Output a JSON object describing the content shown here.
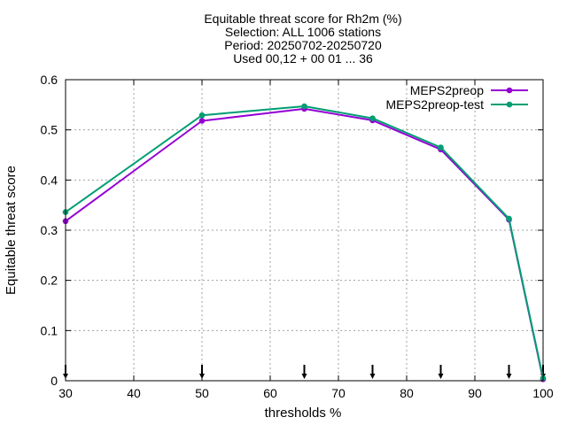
{
  "chart_data": {
    "type": "line",
    "title_lines": [
      "Equitable threat score  for Rh2m (%)",
      "Selection: ALL   1006 stations",
      "Period: 20250702-20250720",
      "Used 00,12 + 00 01 ... 36"
    ],
    "xlabel": "thresholds %",
    "ylabel": "Equitable threat score",
    "xlim": [
      30,
      100
    ],
    "ylim": [
      0,
      0.6
    ],
    "xticks": [
      30,
      40,
      50,
      60,
      70,
      80,
      90,
      100
    ],
    "yticks": [
      0,
      0.1,
      0.2,
      0.3,
      0.4,
      0.5,
      0.6
    ],
    "ytick_labels": [
      "0",
      "0.1",
      "0.2",
      "0.3",
      "0.4",
      "0.5",
      "0.6"
    ],
    "grid": true,
    "legend_position": "top-right",
    "threshold_markers_x": [
      30,
      50,
      65,
      75,
      85,
      95,
      100
    ],
    "series": [
      {
        "name": "MEPS2preop",
        "color": "#9400d3",
        "x": [
          30,
          50,
          65,
          75,
          85,
          95,
          100
        ],
        "y": [
          0.318,
          0.518,
          0.542,
          0.519,
          0.461,
          0.321,
          0.003
        ]
      },
      {
        "name": "MEPS2preop-test",
        "color": "#009e73",
        "x": [
          30,
          50,
          65,
          75,
          85,
          95,
          100
        ],
        "y": [
          0.336,
          0.529,
          0.547,
          0.523,
          0.465,
          0.323,
          0.005
        ]
      }
    ]
  }
}
